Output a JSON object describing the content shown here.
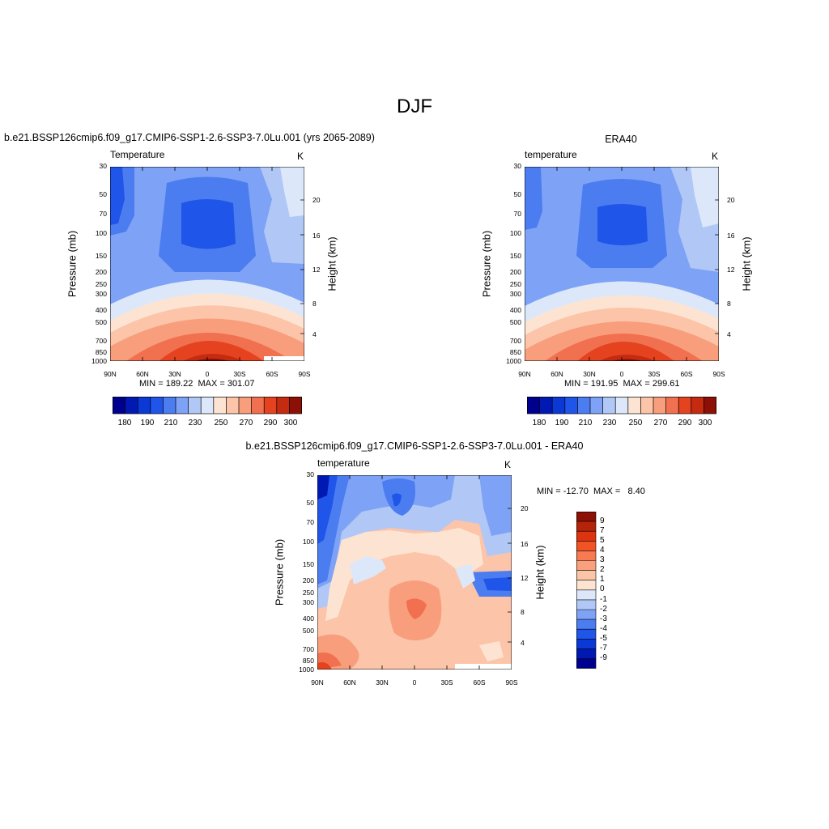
{
  "page": {
    "title": "DJF",
    "diff_title": "b.e21.BSSP126cmip6.f09_g17.CMIP6-SSP1-2.6-SSP3-7.0Lu.001 - ERA40"
  },
  "chart_data": [
    {
      "type": "contour",
      "title": "b.e21.BSSP126cmip6.f09_g17.CMIP6-SSP1-2.6-SSP3-7.0Lu.001 (yrs 2065-2089)",
      "subtitle_left": "Temperature",
      "units": "K",
      "xlabel": "",
      "ylabel": "Pressure (mb)",
      "ylabel_right": "Height (km)",
      "x_ticks": [
        "90N",
        "60N",
        "30N",
        "0",
        "30S",
        "60S",
        "90S"
      ],
      "y_ticks": [
        "30",
        "50",
        "70",
        "100",
        "150",
        "200",
        "250",
        "300",
        "400",
        "500",
        "700",
        "850",
        "1000"
      ],
      "y_ticks_right": [
        "20",
        "16",
        "12",
        "8",
        "4"
      ],
      "min_label": "MIN = 189.22",
      "max_label": "MAX = 301.07",
      "min": 189.22,
      "max": 301.07,
      "colorbar_labels": [
        "180",
        "190",
        "210",
        "230",
        "250",
        "270",
        "290",
        "300"
      ],
      "colorbar_orientation": "horizontal"
    },
    {
      "type": "contour",
      "title": "ERA40",
      "subtitle_left": "temperature",
      "units": "K",
      "xlabel": "",
      "ylabel": "Pressure (mb)",
      "ylabel_right": "Height (km)",
      "x_ticks": [
        "90N",
        "60N",
        "30N",
        "0",
        "30S",
        "60S",
        "90S"
      ],
      "y_ticks": [
        "30",
        "50",
        "70",
        "100",
        "150",
        "200",
        "250",
        "300",
        "400",
        "500",
        "700",
        "850",
        "1000"
      ],
      "y_ticks_right": [
        "20",
        "16",
        "12",
        "8",
        "4"
      ],
      "min_label": "MIN = 191.95",
      "max_label": "MAX = 299.61",
      "min": 191.95,
      "max": 299.61,
      "colorbar_labels": [
        "180",
        "190",
        "210",
        "230",
        "250",
        "270",
        "290",
        "300"
      ],
      "colorbar_orientation": "horizontal"
    },
    {
      "type": "contour",
      "title": "b.e21.BSSP126cmip6.f09_g17.CMIP6-SSP1-2.6-SSP3-7.0Lu.001 - ERA40",
      "subtitle_left": "temperature",
      "units": "K",
      "xlabel": "",
      "ylabel": "Pressure (mb)",
      "ylabel_right": "Height (km)",
      "x_ticks": [
        "90N",
        "60N",
        "30N",
        "0",
        "30S",
        "60S",
        "90S"
      ],
      "y_ticks": [
        "30",
        "50",
        "70",
        "100",
        "150",
        "200",
        "250",
        "300",
        "400",
        "500",
        "700",
        "850",
        "1000"
      ],
      "y_ticks_right": [
        "20",
        "16",
        "12",
        "8",
        "4"
      ],
      "min_label": "MIN = -12.70",
      "max_label": "MAX =   8.40",
      "min": -12.7,
      "max": 8.4,
      "colorbar_labels": [
        "9",
        "7",
        "5",
        "4",
        "3",
        "2",
        "1",
        "0",
        "-1",
        "-2",
        "-3",
        "-4",
        "-5",
        "-7",
        "-9"
      ],
      "colorbar_orientation": "vertical"
    }
  ],
  "colors": {
    "temperature_scale": [
      "#00008f",
      "#0019b3",
      "#0a39d6",
      "#1f55e8",
      "#4b7cf0",
      "#7ea2f5",
      "#b1c8f7",
      "#dce8fa",
      "#fde4d2",
      "#fcc4a8",
      "#f89e7c",
      "#f1704f",
      "#e54320",
      "#c52b10",
      "#8c1005"
    ],
    "difference_scale": [
      "#8c1005",
      "#b52408",
      "#dd3310",
      "#f25324",
      "#f77a52",
      "#f9a07c",
      "#fbc6a8",
      "#fde4d2",
      "#dce8fa",
      "#b1c8f7",
      "#7ea2f5",
      "#4b7cf0",
      "#1f55e8",
      "#0a39d6",
      "#0019b3",
      "#00008f"
    ]
  }
}
